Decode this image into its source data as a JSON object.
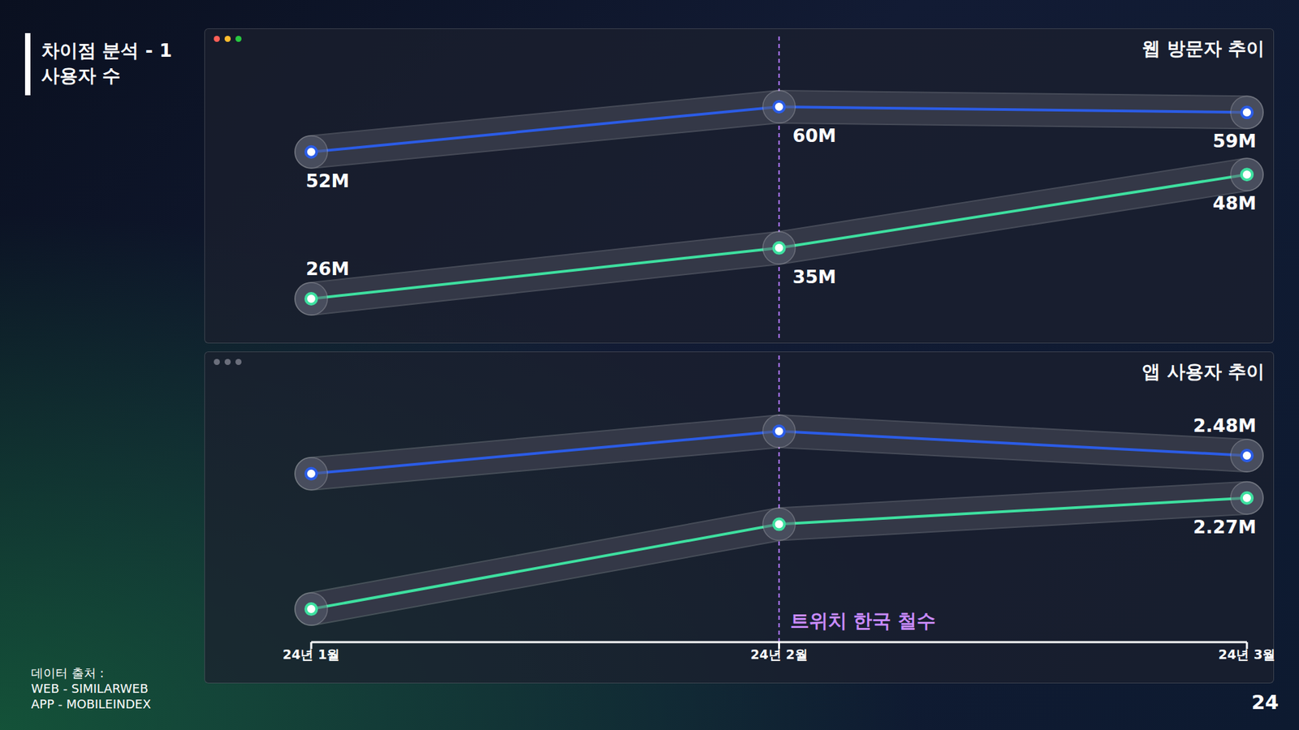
{
  "slide": {
    "title": [
      "차이점 분석 - 1",
      "사용자 수"
    ],
    "page": "24",
    "source": [
      "데이터 출처 :",
      "WEB - SIMILARWEB",
      "APP - MOBILEINDEX"
    ]
  },
  "chart_data": [
    {
      "type": "line",
      "title": "웹 방문자 추이",
      "categories": [
        "24년 1월",
        "24년 2월",
        "24년 3월"
      ],
      "series": [
        {
          "color": "#2b5ce6",
          "values": [
            52,
            60,
            59
          ],
          "value_labels": [
            "52M",
            "60M",
            "59M"
          ],
          "marker": "circle"
        },
        {
          "color": "#3ee0a0",
          "values": [
            26,
            35,
            48
          ],
          "value_labels": [
            "26M",
            "35M",
            "48M"
          ],
          "marker": "circle"
        }
      ],
      "data_labels": true,
      "tick_labels": false,
      "grid": false,
      "annotations": [
        {
          "x": "24년 2월"
        }
      ]
    },
    {
      "type": "line",
      "title": "앱 사용자 추이",
      "categories": [
        "24년 1월",
        "24년 2월",
        "24년 3월"
      ],
      "series": [
        {
          "color": "#2b5ce6",
          "values": [
            2.39,
            2.6,
            2.48
          ],
          "value_labels": [
            null,
            null,
            "2.48M"
          ],
          "marker": "circle"
        },
        {
          "color": "#3ee0a0",
          "values": [
            1.72,
            2.14,
            2.27
          ],
          "value_labels": [
            null,
            null,
            "2.27M"
          ],
          "marker": "circle"
        }
      ],
      "data_labels": true,
      "tick_labels": "x",
      "grid": false,
      "annotations": [
        {
          "x": "24년 2월",
          "text": "트위치 한국 철수"
        }
      ]
    }
  ]
}
